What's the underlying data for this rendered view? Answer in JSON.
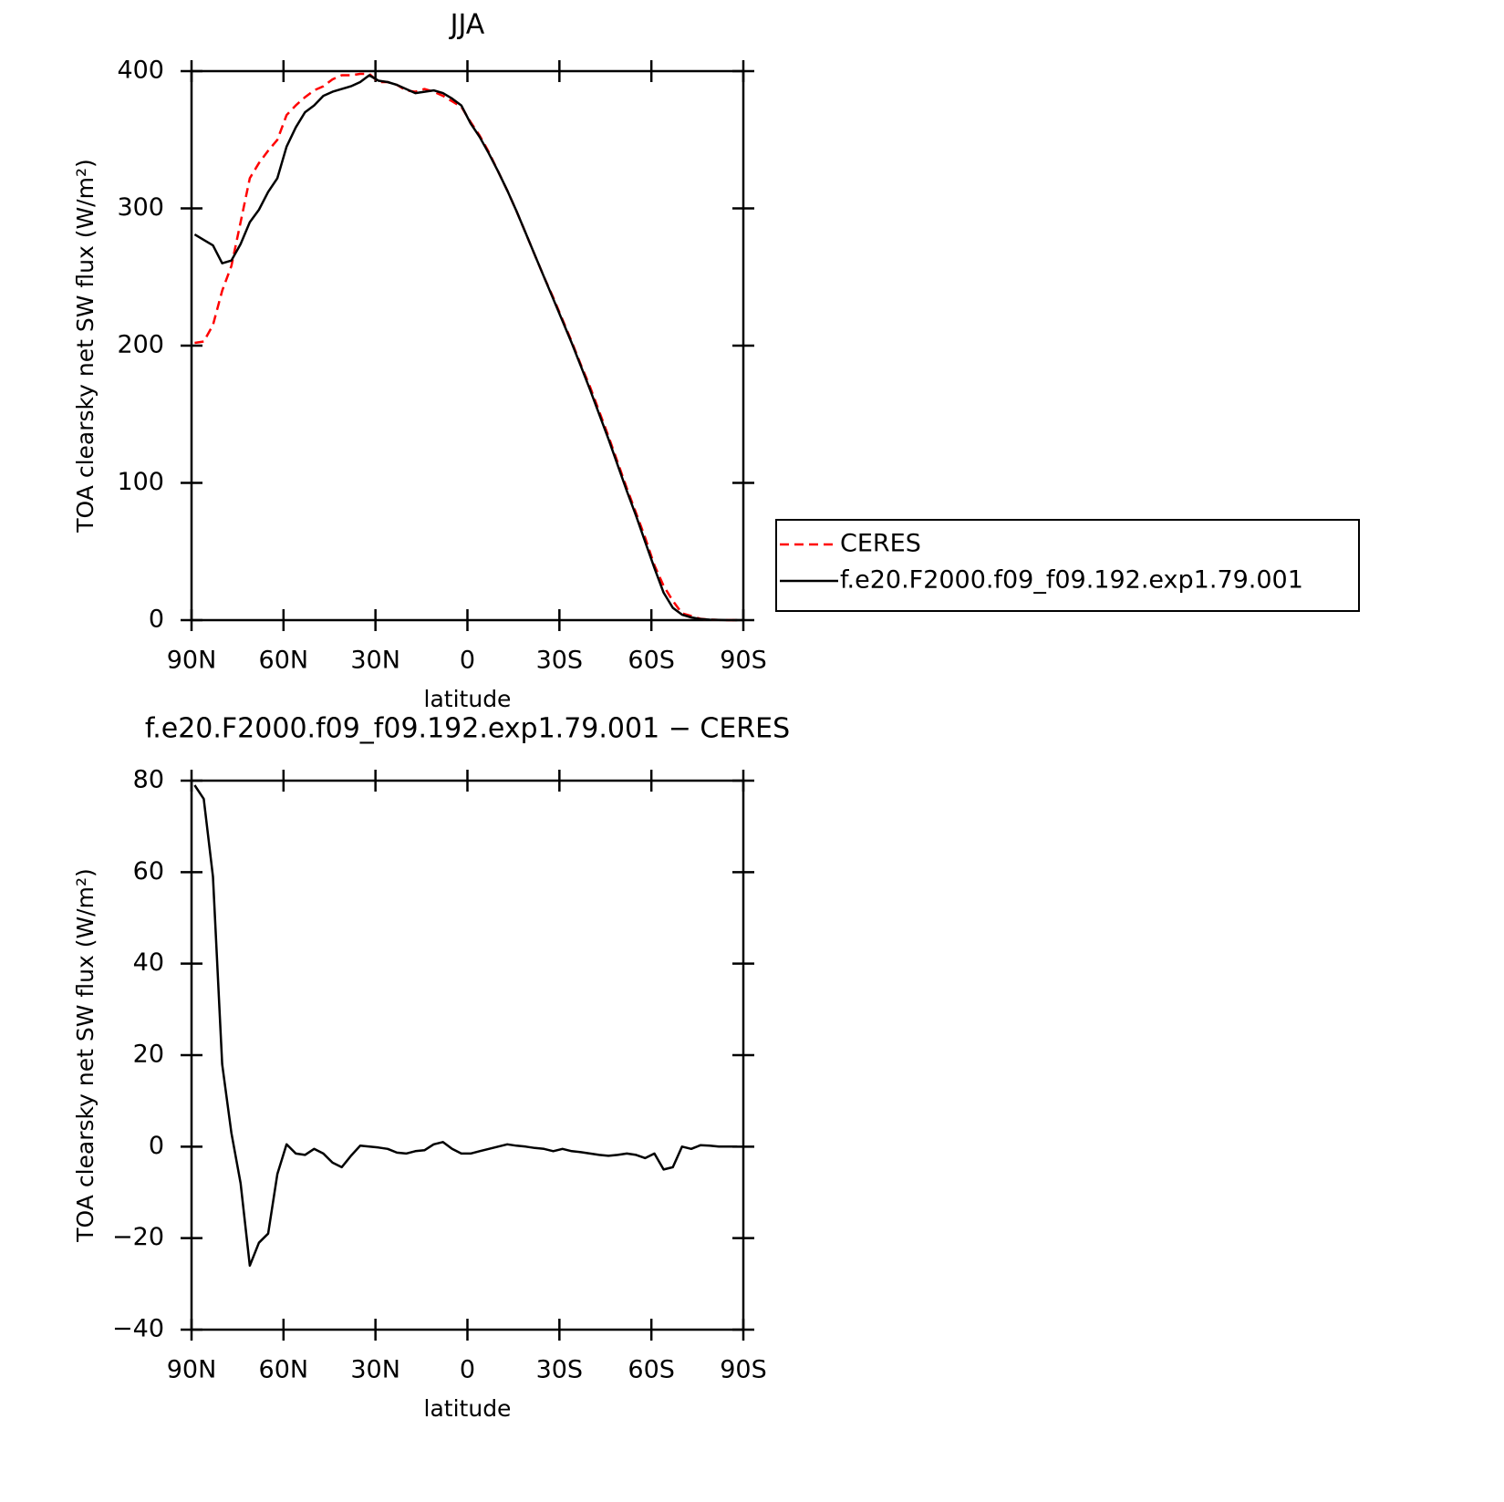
{
  "chart_data": [
    {
      "type": "line",
      "title": "JJA",
      "xlabel": "latitude",
      "ylabel": "TOA clearsky net SW flux (W/m²)",
      "x": [
        89,
        86,
        83,
        80,
        77,
        74,
        71,
        68,
        65,
        62,
        59,
        56,
        53,
        50,
        47,
        44,
        41,
        38,
        35,
        32,
        29,
        26,
        23,
        20,
        17,
        14,
        11,
        8,
        5,
        2,
        -1,
        -4,
        -7,
        -10,
        -13,
        -16,
        -19,
        -22,
        -25,
        -28,
        -31,
        -34,
        -37,
        -40,
        -43,
        -46,
        -49,
        -52,
        -55,
        -58,
        -61,
        -64,
        -67,
        -70,
        -73,
        -76,
        -79,
        -82,
        -85,
        -88
      ],
      "series": [
        {
          "name": "CERES",
          "color": "#ff0000",
          "line_style": "dashed",
          "values": [
            202,
            203,
            215,
            240,
            258,
            290,
            322,
            333,
            342,
            350,
            368,
            375,
            381,
            386,
            389,
            394,
            397,
            397,
            398,
            398,
            392,
            392,
            390,
            386,
            385,
            387,
            385,
            382,
            378,
            374,
            363,
            353,
            341,
            327,
            313,
            298,
            282,
            266,
            250,
            235,
            219,
            203,
            186,
            170,
            152,
            134,
            115,
            96,
            78,
            60,
            40,
            25,
            14,
            5,
            3,
            1,
            0.3,
            0.1,
            0,
            0
          ]
        },
        {
          "name": "f.e20.F2000.f09_f09.192.exp1.79.001",
          "color": "#000000",
          "line_style": "solid",
          "values": [
            281,
            277,
            273,
            260,
            262,
            274,
            290,
            299,
            312,
            322,
            345,
            359,
            370,
            375,
            382,
            385,
            387,
            389,
            392,
            397,
            393,
            392,
            390,
            387,
            384,
            385,
            386,
            384,
            380,
            375,
            362,
            352,
            340,
            327,
            313,
            298,
            282,
            266,
            250,
            234,
            218,
            202,
            185,
            168,
            150,
            132,
            113,
            94,
            76,
            57,
            38,
            20,
            9,
            4,
            2,
            0.8,
            0.3,
            0.1,
            0,
            0
          ]
        }
      ],
      "xlim": [
        90,
        -90
      ],
      "xticks": [
        {
          "value": 90,
          "label": "90N"
        },
        {
          "value": 60,
          "label": "60N"
        },
        {
          "value": 30,
          "label": "30N"
        },
        0,
        {
          "value": -30,
          "label": "30S"
        },
        {
          "value": -60,
          "label": "60S"
        },
        {
          "value": -90,
          "label": "90S"
        }
      ],
      "ylim": [
        0,
        400
      ],
      "yticks": [
        0,
        100,
        200,
        300,
        400
      ],
      "legend": "right"
    },
    {
      "type": "line",
      "title": "f.e20.F2000.f09_f09.192.exp1.79.001 − CERES",
      "xlabel": "latitude",
      "ylabel": "TOA clearsky net SW flux (W/m²)",
      "x": [
        89,
        86,
        83,
        80,
        77,
        74,
        71,
        68,
        65,
        62,
        59,
        56,
        53,
        50,
        47,
        44,
        41,
        38,
        35,
        32,
        29,
        26,
        23,
        20,
        17,
        14,
        11,
        8,
        5,
        2,
        -1,
        -4,
        -7,
        -10,
        -13,
        -16,
        -19,
        -22,
        -25,
        -28,
        -31,
        -34,
        -37,
        -40,
        -43,
        -46,
        -49,
        -52,
        -55,
        -58,
        -61,
        -64,
        -67,
        -70,
        -73,
        -76,
        -79,
        -82,
        -85,
        -88
      ],
      "series": [
        {
          "color": "#000000",
          "line_style": "solid",
          "values": [
            79,
            76,
            59,
            18,
            3,
            -8,
            -26,
            -21,
            -19,
            -6,
            0.5,
            -1.5,
            -1.8,
            -0.5,
            -1.5,
            -3.5,
            -4.5,
            -2,
            0.2,
            0,
            -0.2,
            -0.5,
            -1.3,
            -1.5,
            -1,
            -0.8,
            0.5,
            1,
            -0.5,
            -1.5,
            -1.5,
            -1,
            -0.5,
            0,
            0.5,
            0.2,
            0,
            -0.3,
            -0.5,
            -1,
            -0.5,
            -1,
            -1.2,
            -1.5,
            -1.8,
            -2,
            -1.8,
            -1.5,
            -1.8,
            -2.5,
            -1.5,
            -5,
            -4.5,
            0,
            -0.5,
            0.3,
            0.2,
            0,
            0,
            0
          ]
        }
      ],
      "xlim": [
        90,
        -90
      ],
      "xticks": [
        {
          "value": 90,
          "label": "90N"
        },
        {
          "value": 60,
          "label": "60N"
        },
        {
          "value": 30,
          "label": "30N"
        },
        0,
        {
          "value": -30,
          "label": "30S"
        },
        {
          "value": -60,
          "label": "60S"
        },
        {
          "value": -90,
          "label": "90S"
        }
      ],
      "ylim": [
        -40,
        80
      ],
      "yticks": [
        {
          "value": -40,
          "label": "−40"
        },
        {
          "value": -20,
          "label": "−20"
        },
        0,
        20,
        40,
        60,
        80
      ]
    }
  ]
}
